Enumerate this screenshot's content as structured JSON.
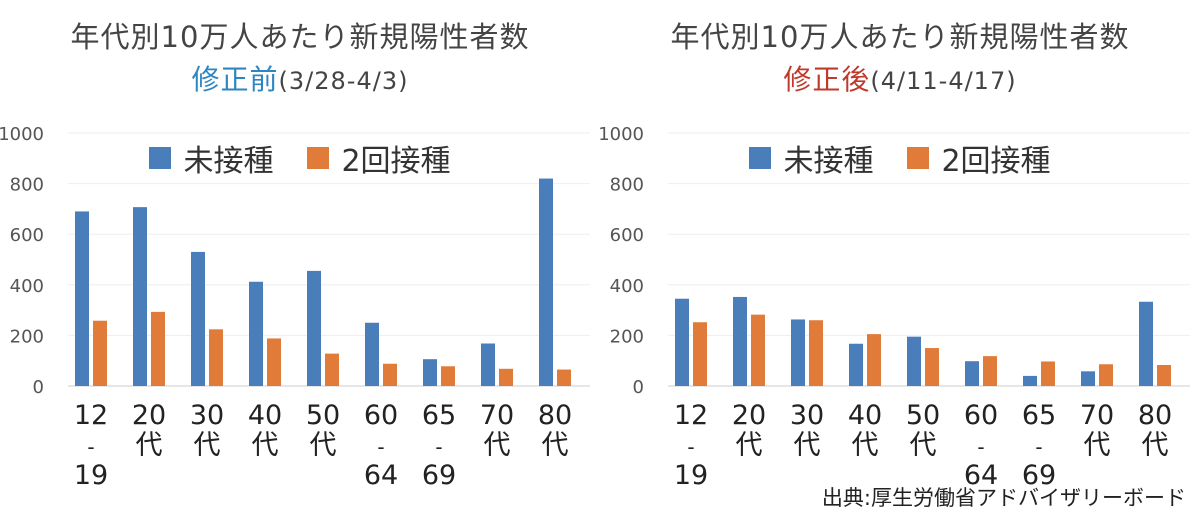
{
  "chart_data": [
    {
      "type": "bar",
      "title": "年代別10万人あたり新規陽性者数",
      "subtitle_emph": "修正前",
      "subtitle_rest": "(3/28-4/3)",
      "subtitle_color": "#2e86c1",
      "categories": [
        [
          "12",
          "-",
          "19"
        ],
        [
          "20",
          "代"
        ],
        [
          "30",
          "代"
        ],
        [
          "40",
          "代"
        ],
        [
          "50",
          "代"
        ],
        [
          "60",
          "-",
          "64"
        ],
        [
          "65",
          "-",
          "69"
        ],
        [
          "70",
          "代"
        ],
        [
          "80",
          "代"
        ]
      ],
      "series": [
        {
          "name": "未接種",
          "color": "#4a7ebb",
          "values": [
            690,
            707,
            530,
            412,
            455,
            250,
            106,
            168,
            820
          ]
        },
        {
          "name": "2回接種",
          "color": "#e07b39",
          "values": [
            258,
            293,
            224,
            188,
            128,
            88,
            78,
            68,
            65
          ]
        }
      ],
      "ylim": [
        0,
        1000
      ],
      "yticks": [
        0,
        200,
        400,
        600,
        800,
        1000
      ],
      "legend_position": "top"
    },
    {
      "type": "bar",
      "title": "年代別10万人あたり新規陽性者数",
      "subtitle_emph": "修正後",
      "subtitle_rest": "(4/11-4/17)",
      "subtitle_color": "#c0392b",
      "categories": [
        [
          "12",
          "-",
          "19"
        ],
        [
          "20",
          "代"
        ],
        [
          "30",
          "代"
        ],
        [
          "40",
          "代"
        ],
        [
          "50",
          "代"
        ],
        [
          "60",
          "-",
          "64"
        ],
        [
          "65",
          "-",
          "69"
        ],
        [
          "70",
          "代"
        ],
        [
          "80",
          "代"
        ]
      ],
      "series": [
        {
          "name": "未接種",
          "color": "#4a7ebb",
          "values": [
            345,
            352,
            263,
            167,
            195,
            98,
            40,
            58,
            333
          ]
        },
        {
          "name": "2回接種",
          "color": "#e07b39",
          "values": [
            252,
            282,
            260,
            205,
            150,
            118,
            97,
            86,
            83
          ]
        }
      ],
      "ylim": [
        0,
        1000
      ],
      "yticks": [
        0,
        200,
        400,
        600,
        800,
        1000
      ],
      "legend_position": "top"
    }
  ],
  "source": "出典:厚生労働省アドバイザリーボード"
}
